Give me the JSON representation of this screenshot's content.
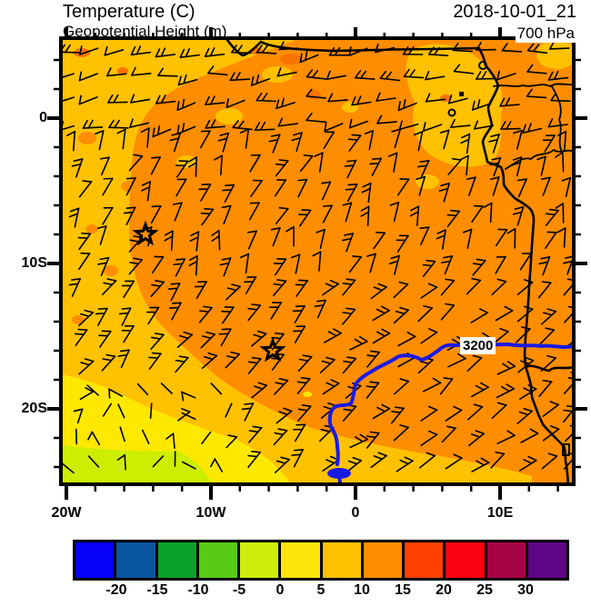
{
  "header": {
    "title": "Temperature (C)",
    "subtitle": "Geopotential Height (m)",
    "datetime": "2018-10-01_21",
    "level": "700 hPa"
  },
  "axes": {
    "y_ticks": [
      {
        "label": "0",
        "y": 130
      },
      {
        "label": "10S",
        "y": 290
      },
      {
        "label": "20S",
        "y": 450
      }
    ],
    "x_ticks": [
      {
        "label": "20W",
        "x": 73
      },
      {
        "label": "10W",
        "x": 232
      },
      {
        "label": "0",
        "x": 391
      },
      {
        "label": "10E",
        "x": 550
      }
    ]
  },
  "contour": {
    "label": "3200",
    "color": "#1a1ae6"
  },
  "markers": {
    "stars": [
      {
        "x": 160,
        "y": 258
      },
      {
        "x": 300,
        "y": 386
      }
    ]
  },
  "colors": {
    "base_orange": "#ff8d00",
    "orange_yellow": "#ffc100",
    "yellow": "#ffe800",
    "yellow_green": "#cdee00",
    "dark_orange": "#fa7400",
    "coast": "#000000"
  },
  "colorbar": {
    "tick_labels": [
      "-20",
      "-15",
      "-10",
      "-5",
      "0",
      "5",
      "10",
      "15",
      "20",
      "25",
      "30"
    ],
    "cell_colors": [
      "#0500f9",
      "#0a55a0",
      "#0ba029",
      "#58cb14",
      "#cdee0b",
      "#ffe60a",
      "#ffc100",
      "#ff8d00",
      "#ff4000",
      "#fb0310",
      "#a90348",
      "#5f0687"
    ]
  },
  "chart_data": {
    "type": "heatmap",
    "title": "Temperature (C)",
    "overlay_field": "Geopotential Height (m)",
    "timestamp": "2018-10-01_21",
    "pressure_level": "700 hPa",
    "projection_region": "West/Central Africa and tropical Atlantic",
    "x_axis": {
      "tick_labels": [
        "20W",
        "10W",
        "0",
        "10E"
      ],
      "minor_tick_interval_deg": 2
    },
    "y_axis": {
      "tick_labels": [
        "0",
        "10S",
        "20S"
      ],
      "minor_tick_interval_deg": 2
    },
    "colorbar": {
      "units": "C",
      "boundaries": [
        -20,
        -15,
        -10,
        -5,
        0,
        5,
        10,
        15,
        20,
        25,
        30
      ],
      "colors": [
        "#0500f9",
        "#0a55a0",
        "#0ba029",
        "#58cb14",
        "#cdee0b",
        "#ffe60a",
        "#ffc100",
        "#ff8d00",
        "#ff4000",
        "#fb0310",
        "#a90348",
        "#5f0687"
      ]
    },
    "visible_temperature_bands_C": {
      "orange_10_15": "most of the map",
      "orange_yellow_5_10": "diagonal band on the west side and along the southern edge",
      "yellow_0_5": "lower-left region",
      "yellow_green_-5_0": "extreme south-west corner"
    },
    "geopotential_height_contours_m": [
      3200
    ],
    "height_contour_3200_path": "enters bottom edge near 1W/25S, arcs north-east and runs east near 16S to the right map edge",
    "station_markers": [
      {
        "symbol": "star",
        "approx_location": "14.5W 8S"
      },
      {
        "symbol": "star",
        "approx_location": "5.8W 16S"
      }
    ],
    "wind_barbs": {
      "coverage": "regular grid over whole map",
      "north_of_equator": "easterly, staffs horizontal",
      "tropics_and_south": "south-easterly trades, staffs tilted north-east with 1-2 barbs",
      "southwest_corner": "light and variable"
    }
  }
}
